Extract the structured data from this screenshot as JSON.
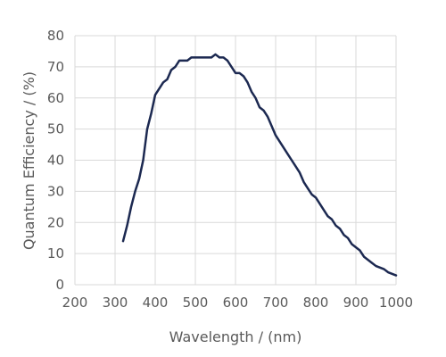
{
  "chart_data": {
    "type": "line",
    "title": "",
    "xlabel": "Wavelength / (nm)",
    "ylabel": "Quantum Efficiency / (%)",
    "xlim": [
      200,
      1000
    ],
    "ylim": [
      0,
      80
    ],
    "xticks": [
      200,
      300,
      400,
      500,
      600,
      700,
      800,
      900,
      1000
    ],
    "yticks": [
      0,
      10,
      20,
      30,
      40,
      50,
      60,
      70,
      80
    ],
    "grid": true,
    "legend": "none",
    "line_color": "#1c2951",
    "grid_color": "#d9d9d9",
    "series": [
      {
        "x": [
          320,
          330,
          340,
          350,
          360,
          370,
          380,
          390,
          400,
          410,
          420,
          430,
          440,
          450,
          460,
          470,
          480,
          490,
          500,
          510,
          520,
          530,
          540,
          550,
          560,
          570,
          580,
          590,
          600,
          610,
          620,
          630,
          640,
          650,
          660,
          670,
          680,
          690,
          700,
          710,
          720,
          730,
          740,
          750,
          760,
          770,
          780,
          790,
          800,
          810,
          820,
          830,
          840,
          850,
          860,
          870,
          880,
          890,
          900,
          910,
          920,
          930,
          940,
          950,
          960,
          970,
          980,
          990,
          1000
        ],
        "y": [
          14,
          19,
          25,
          30,
          34,
          40,
          50,
          55,
          61,
          63,
          65,
          66,
          69,
          70,
          72,
          72,
          72,
          73,
          73,
          73,
          73,
          73,
          73,
          74,
          73,
          73,
          72,
          70,
          68,
          68,
          67,
          65,
          62,
          60,
          57,
          56,
          54,
          51,
          48,
          46,
          44,
          42,
          40,
          38,
          36,
          33,
          31,
          29,
          28,
          26,
          24,
          22,
          21,
          19,
          18,
          16,
          15,
          13,
          12,
          11,
          9,
          8,
          7,
          6,
          5.5,
          5,
          4,
          3.5,
          3
        ]
      }
    ]
  }
}
